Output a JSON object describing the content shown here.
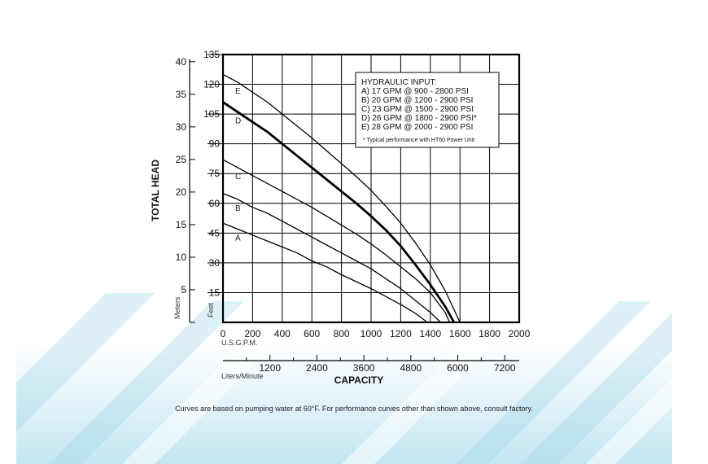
{
  "chart_data": {
    "type": "line",
    "x_axis": {
      "label": "CAPACITY",
      "unit_label": "U.S.G.P.M.",
      "range": [
        0,
        2000
      ],
      "ticks": [
        "0",
        "200",
        "400",
        "600",
        "800",
        "1000",
        "1200",
        "1400",
        "1600",
        "1800",
        "2000"
      ]
    },
    "x_axis_secondary": {
      "unit_label": "Liters/Minute",
      "range": [
        0,
        7570
      ],
      "ticks": [
        "1200",
        "2400",
        "3600",
        "4800",
        "6000",
        "7200"
      ]
    },
    "y_axis": {
      "label": "TOTAL HEAD",
      "unit_label": "Feet",
      "range": [
        0,
        135
      ],
      "ticks": [
        "15",
        "30",
        "45",
        "60",
        "75",
        "90",
        "105",
        "120",
        "135"
      ]
    },
    "y_axis_secondary": {
      "unit_label": "Meters",
      "range": [
        0,
        41.1
      ],
      "ticks": [
        "5",
        "10",
        "15",
        "20",
        "25",
        "30",
        "35",
        "40"
      ]
    },
    "grid": true,
    "legend": {
      "placement": "top-right",
      "title": "HYDRAULIC INPUT:",
      "entries": [
        "A) 17 GPM @ 900 - 2800 PSI",
        "B) 20 GPM @ 1200 - 2900 PSI",
        "C) 23 GPM @ 1500 - 2900 PSI",
        "D) 26 GPM @ 1800 - 2900 PSI*",
        "E) 28 GPM @ 2000 - 2900 PSI"
      ],
      "note": "* Typical performance with HT60 Power Unit"
    },
    "series": [
      {
        "name": "A",
        "bold": false,
        "x": [
          0,
          100,
          200,
          300,
          400,
          500,
          600,
          700,
          800,
          900,
          1000,
          1100,
          1200,
          1300,
          1380
        ],
        "y": [
          50,
          47,
          44,
          41,
          38,
          35,
          31,
          28,
          24,
          20.5,
          17,
          13,
          9,
          4.5,
          0
        ]
      },
      {
        "name": "B",
        "bold": false,
        "x": [
          0,
          100,
          200,
          300,
          400,
          500,
          600,
          700,
          800,
          900,
          1000,
          1100,
          1200,
          1300,
          1400,
          1470
        ],
        "y": [
          65,
          62,
          58,
          55,
          51,
          47,
          43,
          39,
          35,
          31,
          27,
          22,
          17,
          11,
          5,
          0
        ]
      },
      {
        "name": "C",
        "bold": false,
        "x": [
          0,
          100,
          200,
          300,
          400,
          500,
          600,
          700,
          800,
          900,
          1000,
          1100,
          1200,
          1300,
          1400,
          1500,
          1530
        ],
        "y": [
          82,
          78,
          74,
          70,
          66,
          62,
          58,
          53.5,
          49,
          44.5,
          39.5,
          34,
          28,
          22,
          15,
          5,
          0
        ]
      },
      {
        "name": "D",
        "bold": true,
        "x": [
          0,
          100,
          200,
          300,
          400,
          500,
          600,
          700,
          800,
          900,
          1000,
          1100,
          1200,
          1300,
          1400,
          1500,
          1560
        ],
        "y": [
          111,
          106,
          101,
          96,
          90,
          84,
          78,
          72,
          66,
          60,
          53.5,
          46.5,
          38.5,
          29,
          19,
          8,
          0
        ]
      },
      {
        "name": "E",
        "bold": false,
        "x": [
          0,
          100,
          200,
          300,
          400,
          500,
          600,
          700,
          800,
          900,
          1000,
          1100,
          1200,
          1300,
          1400,
          1500,
          1600
        ],
        "y": [
          125,
          121,
          116,
          111,
          105,
          99,
          93,
          86.5,
          80,
          73.5,
          66.5,
          58.5,
          50,
          40,
          29,
          16,
          0
        ]
      }
    ]
  },
  "footnote": "Curves are based on pumping water at 60°F. For performance curves other than shown above, consult factory."
}
